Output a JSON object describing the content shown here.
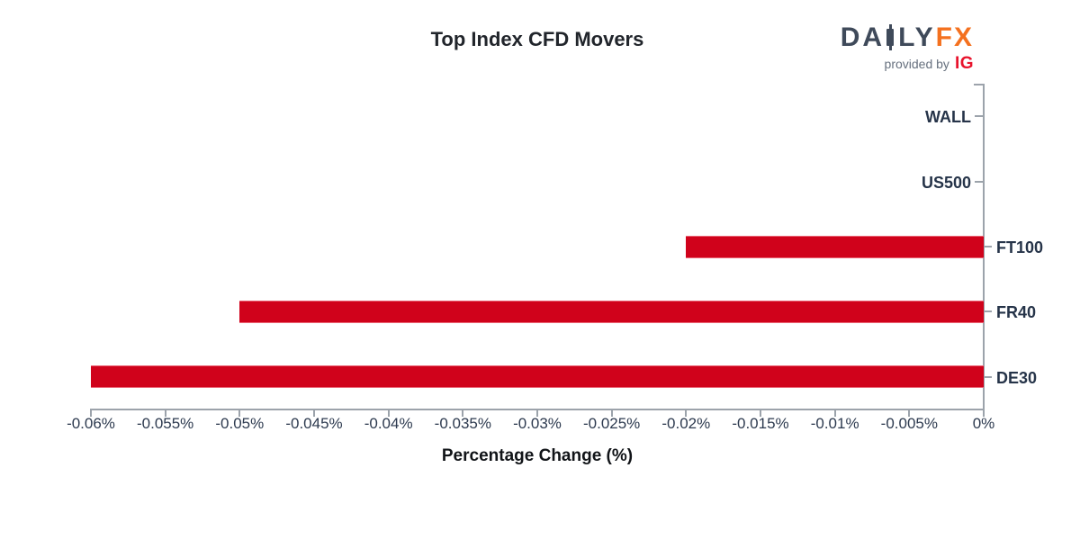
{
  "header": {
    "logo": {
      "text_before_candle": "DA",
      "text_after_candle": "LY",
      "text_fx": "FX",
      "provided_by": "provided by",
      "ig": "IG"
    }
  },
  "chart_data": {
    "type": "bar",
    "orientation": "horizontal",
    "title": "Top Index CFD Movers",
    "xlabel": "Percentage Change (%)",
    "categories": [
      "WALL",
      "US500",
      "FT100",
      "FR40",
      "DE30"
    ],
    "values": [
      0,
      0,
      -0.02,
      -0.05,
      -0.06
    ],
    "xlim": [
      -0.06,
      0
    ],
    "xtick_values": [
      -0.06,
      -0.055,
      -0.05,
      -0.045,
      -0.04,
      -0.035,
      -0.03,
      -0.025,
      -0.02,
      -0.015,
      -0.01,
      -0.005,
      0
    ],
    "xtick_labels": [
      "-0.06%",
      "-0.055%",
      "-0.05%",
      "-0.045%",
      "-0.04%",
      "-0.035%",
      "-0.03%",
      "-0.025%",
      "-0.02%",
      "-0.015%",
      "-0.01%",
      "-0.005%",
      "0%"
    ],
    "grid": false,
    "legend": null,
    "bar_color": "#d0021b"
  },
  "colors": {
    "bar_red": "#d0021b",
    "axis_gray": "#9ca3ab",
    "tick_label_navy": "#2d3a4f",
    "category_label_navy": "#263449",
    "title_color": "#21252b",
    "logo_slate": "#3f4a5a",
    "logo_orange": "#f4711f",
    "logo_ig_red": "#e8132c",
    "provided_by_gray": "#66707e"
  }
}
